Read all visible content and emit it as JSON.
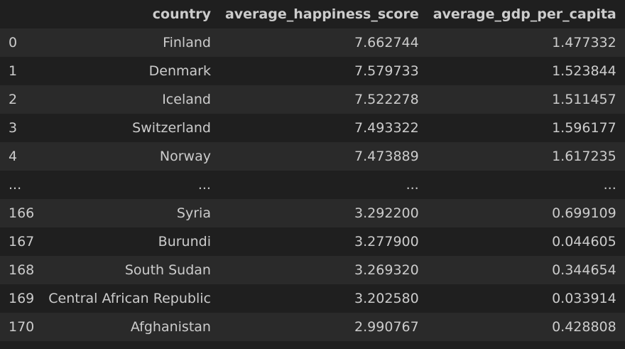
{
  "table": {
    "columns": [
      "",
      "country",
      "average_happiness_score",
      "average_gdp_per_capita"
    ],
    "rows": [
      {
        "index": "0",
        "country": "Finland",
        "average_happiness_score": "7.662744",
        "average_gdp_per_capita": "1.477332"
      },
      {
        "index": "1",
        "country": "Denmark",
        "average_happiness_score": "7.579733",
        "average_gdp_per_capita": "1.523844"
      },
      {
        "index": "2",
        "country": "Iceland",
        "average_happiness_score": "7.522278",
        "average_gdp_per_capita": "1.511457"
      },
      {
        "index": "3",
        "country": "Switzerland",
        "average_happiness_score": "7.493322",
        "average_gdp_per_capita": "1.596177"
      },
      {
        "index": "4",
        "country": "Norway",
        "average_happiness_score": "7.473889",
        "average_gdp_per_capita": "1.617235"
      },
      {
        "index": "...",
        "country": "...",
        "average_happiness_score": "...",
        "average_gdp_per_capita": "..."
      },
      {
        "index": "166",
        "country": "Syria",
        "average_happiness_score": "3.292200",
        "average_gdp_per_capita": "0.699109"
      },
      {
        "index": "167",
        "country": "Burundi",
        "average_happiness_score": "3.277900",
        "average_gdp_per_capita": "0.044605"
      },
      {
        "index": "168",
        "country": "South Sudan",
        "average_happiness_score": "3.269320",
        "average_gdp_per_capita": "0.344654"
      },
      {
        "index": "169",
        "country": "Central African Republic",
        "average_happiness_score": "3.202580",
        "average_gdp_per_capita": "0.033914"
      },
      {
        "index": "170",
        "country": "Afghanistan",
        "average_happiness_score": "2.990767",
        "average_gdp_per_capita": "0.428808"
      }
    ]
  },
  "colors": {
    "background": "#1f1f1f",
    "row_stripe": "#2a2a2a",
    "text": "#cccccc"
  }
}
